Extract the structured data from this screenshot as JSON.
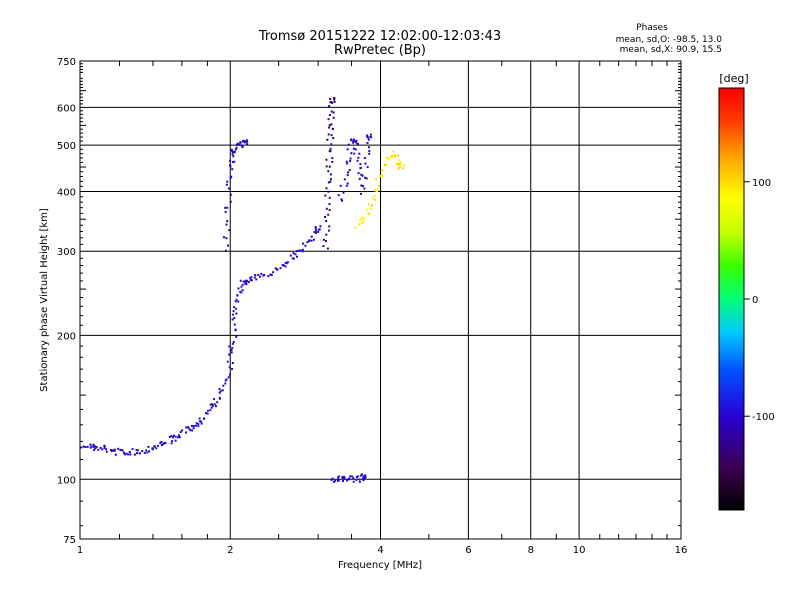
{
  "header": {
    "title_line1": "Tromsø 20151222 12:02:00-12:03:43",
    "title_line2": "RwPretec (Bp)"
  },
  "stats": {
    "heading": "Phases",
    "line_o": "mean, sd,O: -98.5, 13.0",
    "line_x": "mean, sd,X:  90.9, 15.5"
  },
  "chart_data": {
    "type": "scatter",
    "xlabel": "Frequency [MHz]",
    "ylabel": "Stationary phase Virtual Height [km]",
    "xscale": "log",
    "yscale": "log",
    "xlim": [
      1,
      16
    ],
    "ylim": [
      75,
      750
    ],
    "x_ticks": [
      1,
      2,
      4,
      6,
      8,
      10,
      16
    ],
    "x_tick_labels": [
      "1",
      "2",
      "4",
      "6",
      "8",
      "10",
      "16"
    ],
    "y_ticks": [
      75,
      100,
      200,
      300,
      400,
      500,
      600,
      750
    ],
    "y_tick_labels": [
      "75",
      "100",
      "200",
      "300",
      "400",
      "500",
      "600",
      "750"
    ],
    "grid": true,
    "colorbar": {
      "unit": "[deg]",
      "range": [
        -180,
        180
      ],
      "ticks": [
        -100,
        0,
        100
      ],
      "tick_labels": [
        "-100",
        "0",
        "100"
      ],
      "colormap": "rainbow"
    },
    "series": [
      {
        "trace": "O-mode low E/F1 trace",
        "phase_deg": -100,
        "points": [
          [
            1.02,
            118
          ],
          [
            1.05,
            117
          ],
          [
            1.08,
            116
          ],
          [
            1.12,
            116
          ],
          [
            1.16,
            115
          ],
          [
            1.2,
            114
          ],
          [
            1.25,
            114
          ],
          [
            1.3,
            114
          ],
          [
            1.35,
            115
          ],
          [
            1.4,
            117
          ],
          [
            1.45,
            118
          ],
          [
            1.5,
            120
          ],
          [
            1.55,
            122
          ],
          [
            1.6,
            124
          ],
          [
            1.65,
            127
          ],
          [
            1.7,
            130
          ],
          [
            1.75,
            133
          ],
          [
            1.8,
            138
          ],
          [
            1.85,
            143
          ],
          [
            1.9,
            150
          ],
          [
            1.95,
            160
          ],
          [
            2.0,
            175
          ],
          [
            2.02,
            190
          ],
          [
            2.04,
            210
          ],
          [
            2.06,
            230
          ],
          [
            2.08,
            245
          ],
          [
            2.1,
            255
          ],
          [
            2.15,
            260
          ],
          [
            2.2,
            262
          ],
          [
            2.3,
            265
          ],
          [
            2.4,
            270
          ],
          [
            2.5,
            278
          ],
          [
            2.6,
            285
          ],
          [
            2.7,
            295
          ],
          [
            2.8,
            305
          ],
          [
            2.9,
            318
          ],
          [
            3.0,
            335
          ]
        ]
      },
      {
        "trace": "O-mode cusp near 2 MHz",
        "phase_deg": -110,
        "points": [
          [
            1.95,
            300
          ],
          [
            1.97,
            350
          ],
          [
            1.99,
            400
          ],
          [
            2.0,
            450
          ],
          [
            2.02,
            480
          ],
          [
            2.05,
            495
          ],
          [
            2.1,
            500
          ],
          [
            2.15,
            505
          ]
        ]
      },
      {
        "trace": "O-mode F2 column 3.1 MHz",
        "phase_deg": -125,
        "points": [
          [
            3.1,
            300
          ],
          [
            3.12,
            340
          ],
          [
            3.14,
            380
          ],
          [
            3.15,
            420
          ],
          [
            3.16,
            460
          ],
          [
            3.17,
            500
          ],
          [
            3.18,
            540
          ],
          [
            3.19,
            580
          ],
          [
            3.2,
            620
          ]
        ]
      },
      {
        "trace": "O-mode F2 band 3.4-3.7 MHz",
        "phase_deg": -105,
        "points": [
          [
            3.3,
            380
          ],
          [
            3.4,
            420
          ],
          [
            3.45,
            460
          ],
          [
            3.5,
            500
          ],
          [
            3.55,
            520
          ],
          [
            3.6,
            480
          ],
          [
            3.65,
            440
          ],
          [
            3.7,
            400
          ],
          [
            3.75,
            470
          ],
          [
            3.8,
            520
          ]
        ]
      },
      {
        "trace": "X-mode F2 trace",
        "phase_deg": 95,
        "points": [
          [
            3.6,
            340
          ],
          [
            3.7,
            350
          ],
          [
            3.8,
            370
          ],
          [
            3.9,
            400
          ],
          [
            4.0,
            430
          ],
          [
            4.1,
            460
          ],
          [
            4.2,
            480
          ],
          [
            4.3,
            470
          ],
          [
            4.4,
            450
          ]
        ]
      },
      {
        "trace": "Sporadic E 3.2-3.7 MHz",
        "phase_deg": -100,
        "points": [
          [
            3.2,
            100
          ],
          [
            3.3,
            100
          ],
          [
            3.4,
            100
          ],
          [
            3.5,
            101
          ],
          [
            3.6,
            100
          ],
          [
            3.7,
            101
          ]
        ]
      }
    ]
  }
}
